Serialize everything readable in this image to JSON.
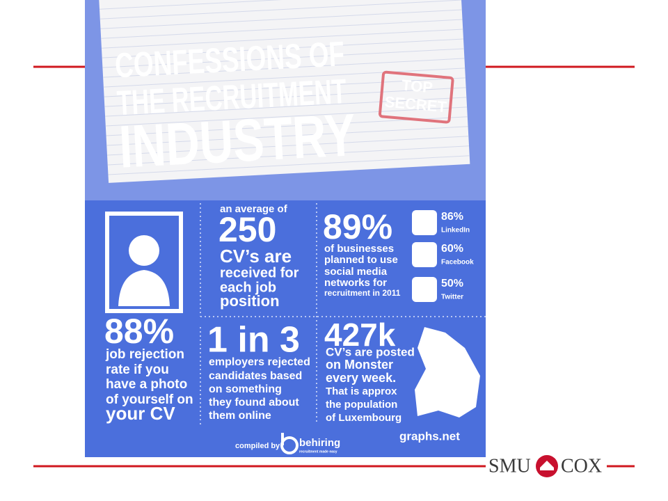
{
  "header": {
    "title_lines": [
      "CONFESSIONS OF",
      "THE RECRUITMENT",
      "INDUSTRY"
    ],
    "stamp": [
      "TOP",
      "SECRET"
    ]
  },
  "panels": [
    {
      "stat": "88%",
      "lines": [
        "job rejection",
        "rate if you",
        "have a photo",
        "of yourself on",
        "your CV"
      ]
    },
    {
      "intro": "an average of",
      "stat": "250",
      "lines": [
        "CV’s are",
        "received for",
        "each job",
        "position"
      ]
    },
    {
      "stat": "89%",
      "lines": [
        "of businesses",
        "planned to use",
        "social media",
        "networks for",
        "recruitment in 2011"
      ],
      "social": [
        {
          "icon": "in",
          "share": "86%",
          "network": "LinkedIn"
        },
        {
          "icon": "f",
          "share": "60%",
          "network": "Facebook"
        },
        {
          "icon": "t",
          "share": "50%",
          "network": "Twitter"
        }
      ]
    },
    {
      "stat": "1 in 3",
      "lines": [
        "employers rejected",
        "candidates based",
        "on something",
        "they found about",
        "them online"
      ]
    },
    {
      "stat": "427k",
      "lines": [
        "CV’s are posted",
        "on Monster",
        "every week.",
        "That is approx",
        "the population",
        "of Luxembourg"
      ]
    }
  ],
  "footer": {
    "compiled_by": "compiled by",
    "brand": "behiring",
    "tagline": "recruitment made easy",
    "watermark": "graphs.net"
  },
  "logo": {
    "left": "SMU",
    "right": "COX"
  }
}
